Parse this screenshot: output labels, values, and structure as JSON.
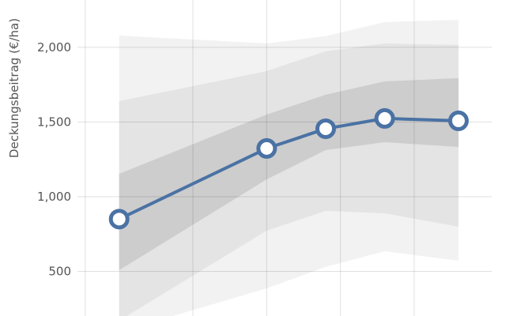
{
  "chart_data": {
    "type": "line",
    "ylabel": "Deckungsbeitrag (€/ha)",
    "ylim": [
      201,
      2317
    ],
    "yticks": [
      500,
      1000,
      1500,
      2000
    ],
    "ytick_labels": [
      "500",
      "1,000",
      "1,500",
      "2,000"
    ],
    "x_gridlines": [
      -1.46,
      0,
      1,
      2,
      3
    ],
    "grid": true,
    "x": [
      -1.0,
      1.0,
      1.8,
      2.6,
      3.6
    ],
    "series": [
      {
        "values": [
          850,
          1323,
          1455,
          1524,
          1508
        ],
        "color": "#4a72a4"
      }
    ],
    "bands": [
      {
        "lower": [
          95,
          386,
          530,
          635,
          571
        ],
        "upper": [
          2079,
          2026,
          2075,
          2169,
          2185
        ],
        "color": "#f2f2f2"
      },
      {
        "lower": [
          170,
          772,
          905,
          889,
          799
        ],
        "upper": [
          1640,
          1841,
          1974,
          2026,
          2016
        ],
        "color": "#e4e4e4"
      },
      {
        "lower": [
          508,
          1116,
          1312,
          1365,
          1333
        ],
        "upper": [
          1153,
          1550,
          1683,
          1772,
          1794
        ],
        "color": "#cdcdcd"
      }
    ]
  }
}
